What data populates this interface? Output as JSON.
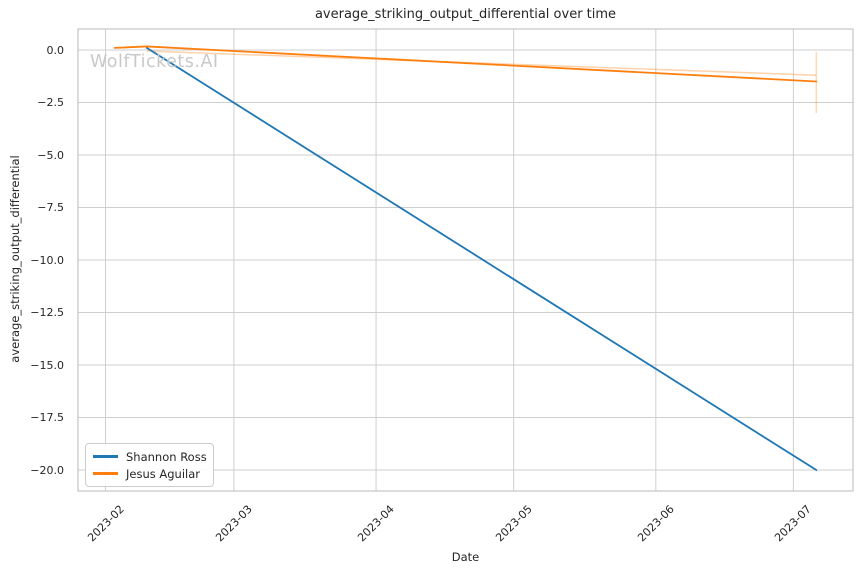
{
  "watermark": "WolfTickets.AI",
  "colors": {
    "series_blue": "#1f77b4",
    "series_orange": "#ff7f0e",
    "grid": "#cfcfcf",
    "spine": "#c4c4c4",
    "text": "#262626",
    "watermark": "#c9c9c9"
  },
  "chart_data": {
    "type": "line",
    "title": "average_striking_output_differential over time",
    "xlabel": "Date",
    "ylabel": "average_striking_output_differential",
    "grid": true,
    "legend_position": "lower left",
    "xlim": [
      "2023-01-26",
      "2023-07-14"
    ],
    "ylim": [
      -21,
      1
    ],
    "y_ticks": [
      0,
      -2.5,
      -5,
      -7.5,
      -10,
      -12.5,
      -15,
      -17.5,
      -20
    ],
    "x_ticks": [
      {
        "date": "2023-02-01",
        "label": "2023-02"
      },
      {
        "date": "2023-03-01",
        "label": "2023-03"
      },
      {
        "date": "2023-04-01",
        "label": "2023-04"
      },
      {
        "date": "2023-05-01",
        "label": "2023-05"
      },
      {
        "date": "2023-06-01",
        "label": "2023-06"
      },
      {
        "date": "2023-07-01",
        "label": "2023-07"
      }
    ],
    "series": [
      {
        "name": "Shannon Ross",
        "color": "#1f77b4",
        "points": [
          [
            "2023-02-10",
            0.1
          ],
          [
            "2023-07-06",
            -20.0
          ]
        ]
      },
      {
        "name": "Jesus Aguilar",
        "color": "#ff7f0e",
        "points": [
          [
            "2023-02-03",
            0.1
          ],
          [
            "2023-02-10",
            0.17
          ],
          [
            "2023-07-06",
            -1.5
          ]
        ]
      }
    ],
    "confidence": {
      "line": {
        "series": "Jesus Aguilar",
        "points": [
          [
            "2023-02-10",
            -0.05
          ],
          [
            "2023-07-06",
            -1.2
          ]
        ],
        "opacity": 0.35
      },
      "error_bar": {
        "series": "Jesus Aguilar",
        "date": "2023-07-06",
        "from": -0.1,
        "to": -3.0,
        "opacity": 0.3
      }
    }
  }
}
